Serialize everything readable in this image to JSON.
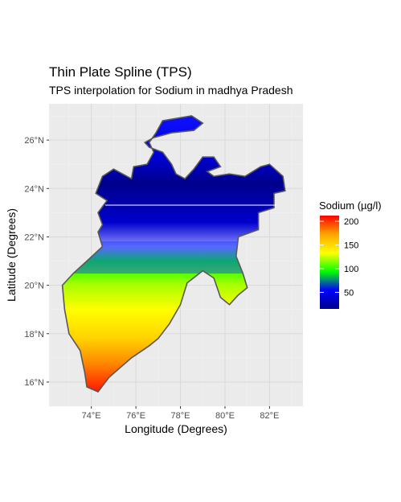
{
  "chart_data": {
    "type": "heatmap",
    "title": "Thin Plate Spline (TPS)",
    "subtitle": "TPS interpolation for Sodium in madhya Pradesh",
    "xlabel": "Longitude (Degrees)",
    "ylabel": "Latitude (Degrees)",
    "xlim": [
      72.1,
      83.5
    ],
    "ylim": [
      15.0,
      27.5
    ],
    "x_ticks": [
      {
        "value": 74,
        "label": "74°E"
      },
      {
        "value": 76,
        "label": "76°E"
      },
      {
        "value": 78,
        "label": "78°E"
      },
      {
        "value": 80,
        "label": "80°E"
      },
      {
        "value": 82,
        "label": "82°E"
      }
    ],
    "y_ticks": [
      {
        "value": 16,
        "label": "16°N"
      },
      {
        "value": 18,
        "label": "18°N"
      },
      {
        "value": 20,
        "label": "20°N"
      },
      {
        "value": 22,
        "label": "22°N"
      },
      {
        "value": 24,
        "label": "24°N"
      },
      {
        "value": 26,
        "label": "26°N"
      }
    ],
    "grid": true,
    "legend": {
      "title": "Sodium (µg/l)",
      "placement": "right",
      "range": [
        15,
        212
      ],
      "breaks": [
        {
          "value": 50,
          "label": "50"
        },
        {
          "value": 100,
          "label": "100"
        },
        {
          "value": 150,
          "label": "150"
        },
        {
          "value": 200,
          "label": "200"
        }
      ],
      "colors": [
        "#00008b",
        "#0000ff",
        "#00ff00",
        "#ffff00",
        "#ffa500",
        "#ff0000"
      ]
    },
    "colors": {
      "panel_background": "#ebebeb",
      "grid_line": "#d9d9d9",
      "boundary": "#595959"
    }
  }
}
